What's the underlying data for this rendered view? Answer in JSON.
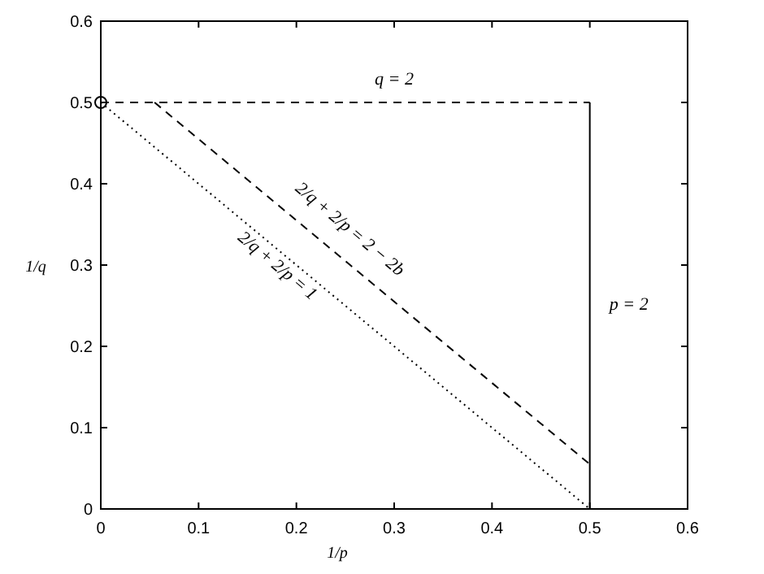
{
  "chart_data": {
    "type": "line",
    "xlabel": "1/p",
    "ylabel": "1/q",
    "xlim": [
      0,
      0.6
    ],
    "ylim": [
      0,
      0.6
    ],
    "xticks": [
      0,
      0.1,
      0.2,
      0.3,
      0.4,
      0.5,
      0.6
    ],
    "yticks": [
      0,
      0.1,
      0.2,
      0.3,
      0.4,
      0.5,
      0.6
    ],
    "grid": false,
    "series": [
      {
        "color": "#000000",
        "x": [
          0,
          0.5
        ],
        "values": [
          0.5,
          0.5
        ],
        "line_style": "dashed",
        "marker": "none"
      },
      {
        "color": "#000000",
        "x": [
          0.055,
          0.5
        ],
        "values": [
          0.5,
          0.055
        ],
        "line_style": "dashed",
        "marker": "none"
      },
      {
        "color": "#000000",
        "x": [
          0,
          0.5
        ],
        "values": [
          0.5,
          0
        ],
        "line_style": "dotted",
        "marker": "none"
      },
      {
        "color": "#000000",
        "x": [
          0.5,
          0.5
        ],
        "values": [
          0,
          0.5
        ],
        "line_style": "solid",
        "marker": "none"
      },
      {
        "type": "scatter",
        "color": "#000000",
        "x": [
          0
        ],
        "values": [
          0.5
        ],
        "marker": "circle"
      }
    ],
    "annotations": [
      "q = 2",
      "p = 2",
      "2/q + 2/p = 2 − 2b",
      "2/q + 2/p = 1"
    ]
  }
}
